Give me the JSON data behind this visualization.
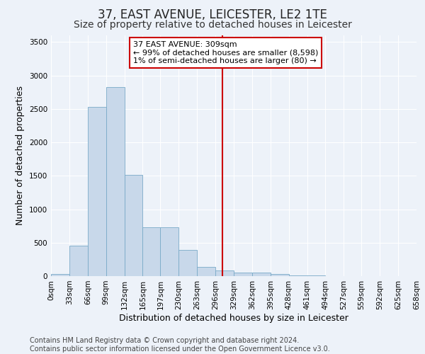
{
  "title": "37, EAST AVENUE, LEICESTER, LE2 1TE",
  "subtitle": "Size of property relative to detached houses in Leicester",
  "xlabel": "Distribution of detached houses by size in Leicester",
  "ylabel": "Number of detached properties",
  "bar_color": "#c8d8ea",
  "bar_edgecolor": "#7aaac8",
  "background_color": "#edf2f9",
  "grid_color": "#ffffff",
  "vline_value": 309,
  "vline_color": "#cc0000",
  "annotation_text": "37 EAST AVENUE: 309sqm\n← 99% of detached houses are smaller (8,598)\n1% of semi-detached houses are larger (80) →",
  "annotation_box_edgecolor": "#cc0000",
  "bin_edges": [
    0,
    33,
    66,
    99,
    132,
    165,
    197,
    230,
    263,
    296,
    329,
    362,
    395,
    428,
    461,
    494,
    527,
    559,
    592,
    625,
    658
  ],
  "bin_labels": [
    "0sqm",
    "33sqm",
    "66sqm",
    "99sqm",
    "132sqm",
    "165sqm",
    "197sqm",
    "230sqm",
    "263sqm",
    "296sqm",
    "329sqm",
    "362sqm",
    "395sqm",
    "428sqm",
    "461sqm",
    "494sqm",
    "527sqm",
    "559sqm",
    "592sqm",
    "625sqm",
    "658sqm"
  ],
  "bar_heights": [
    30,
    460,
    2530,
    2830,
    1510,
    730,
    730,
    390,
    140,
    90,
    55,
    55,
    30,
    15,
    10,
    5,
    5,
    3,
    2,
    1
  ],
  "ylim": [
    0,
    3600
  ],
  "yticks": [
    0,
    500,
    1000,
    1500,
    2000,
    2500,
    3000,
    3500
  ],
  "footer_text": "Contains HM Land Registry data © Crown copyright and database right 2024.\nContains public sector information licensed under the Open Government Licence v3.0.",
  "title_fontsize": 12,
  "subtitle_fontsize": 10,
  "axis_label_fontsize": 9,
  "tick_fontsize": 7.5,
  "annotation_fontsize": 8,
  "footer_fontsize": 7
}
